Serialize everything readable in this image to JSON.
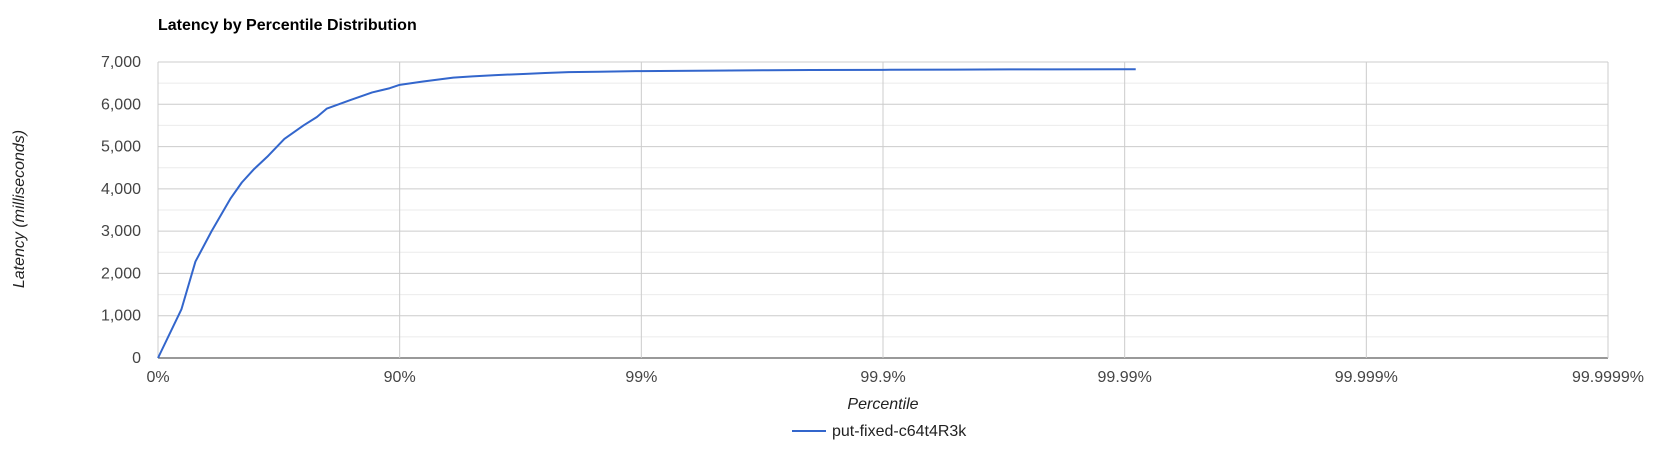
{
  "chart_data": {
    "type": "line",
    "title": "Latency by Percentile Distribution",
    "xlabel": "Percentile",
    "ylabel": "Latency (milliseconds)",
    "x_scale": "percentile-log (nines)",
    "x_ticks": [
      {
        "p": 0,
        "label": "0%"
      },
      {
        "p": 90,
        "label": "90%"
      },
      {
        "p": 99,
        "label": "99%"
      },
      {
        "p": 99.9,
        "label": "99.9%"
      },
      {
        "p": 99.99,
        "label": "99.99%"
      },
      {
        "p": 99.999,
        "label": "99.999%"
      },
      {
        "p": 99.9999,
        "label": "99.9999%"
      }
    ],
    "y_ticks": [
      {
        "v": 0,
        "label": "0"
      },
      {
        "v": 1000,
        "label": "1,000"
      },
      {
        "v": 2000,
        "label": "2,000"
      },
      {
        "v": 3000,
        "label": "3,000"
      },
      {
        "v": 4000,
        "label": "4,000"
      },
      {
        "v": 5000,
        "label": "5,000"
      },
      {
        "v": 6000,
        "label": "6,000"
      },
      {
        "v": 7000,
        "label": "7,000"
      }
    ],
    "ylim": [
      0,
      7000
    ],
    "grid": true,
    "legend_position": "bottom",
    "series": [
      {
        "name": "put-fixed-c64t4R3k",
        "color": "#3366cc",
        "points": [
          {
            "p": 0,
            "y": 0
          },
          {
            "p": 20,
            "y": 1150
          },
          {
            "p": 30,
            "y": 2280
          },
          {
            "p": 40,
            "y": 3000
          },
          {
            "p": 50,
            "y": 3780
          },
          {
            "p": 55,
            "y": 4150
          },
          {
            "p": 60,
            "y": 4470
          },
          {
            "p": 65,
            "y": 4780
          },
          {
            "p": 70,
            "y": 5180
          },
          {
            "p": 75,
            "y": 5500
          },
          {
            "p": 78,
            "y": 5700
          },
          {
            "p": 80,
            "y": 5900
          },
          {
            "p": 84,
            "y": 6100
          },
          {
            "p": 87,
            "y": 6280
          },
          {
            "p": 89,
            "y": 6380
          },
          {
            "p": 90,
            "y": 6460
          },
          {
            "p": 92,
            "y": 6540
          },
          {
            "p": 94,
            "y": 6630
          },
          {
            "p": 95,
            "y": 6660
          },
          {
            "p": 96,
            "y": 6690
          },
          {
            "p": 97,
            "y": 6720
          },
          {
            "p": 97.5,
            "y": 6740
          },
          {
            "p": 98,
            "y": 6760
          },
          {
            "p": 98.5,
            "y": 6770
          },
          {
            "p": 99,
            "y": 6785
          },
          {
            "p": 99.5,
            "y": 6795
          },
          {
            "p": 99.7,
            "y": 6805
          },
          {
            "p": 99.8,
            "y": 6810
          },
          {
            "p": 99.9,
            "y": 6815
          },
          {
            "p": 99.95,
            "y": 6820
          },
          {
            "p": 99.97,
            "y": 6825
          },
          {
            "p": 99.98,
            "y": 6827
          },
          {
            "p": 99.99,
            "y": 6830
          },
          {
            "p": 99.991,
            "y": 6830
          }
        ]
      }
    ]
  }
}
